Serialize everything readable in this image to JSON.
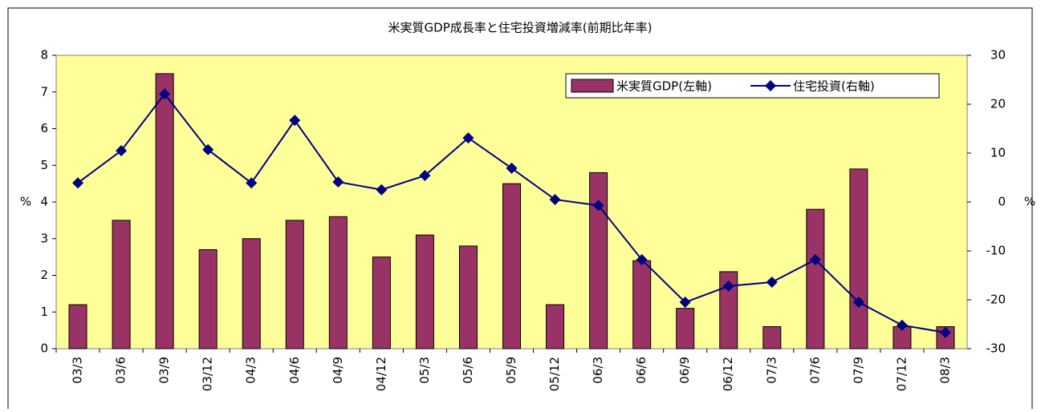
{
  "chart_data": {
    "type": "bar",
    "title": "米実質GDP成長率と住宅投資増減率(前期比年率)",
    "ylabel": "%",
    "y2label": "%",
    "categories": [
      "03/3",
      "03/6",
      "03/9",
      "03/12",
      "04/3",
      "04/6",
      "04/9",
      "04/12",
      "05/3",
      "05/6",
      "05/9",
      "05/12",
      "06/3",
      "06/6",
      "06/9",
      "06/12",
      "07/3",
      "07/6",
      "07/9",
      "07/12",
      "08/3"
    ],
    "series": [
      {
        "name": "米実質GDP(左軸)",
        "type": "bar",
        "color": "#993366",
        "values": [
          1.2,
          3.5,
          7.5,
          2.7,
          3.0,
          3.5,
          3.6,
          2.5,
          3.1,
          2.8,
          4.5,
          1.2,
          4.8,
          2.4,
          1.1,
          2.1,
          0.6,
          3.8,
          4.9,
          0.6,
          0.6
        ]
      },
      {
        "name": "住宅投資(右軸)",
        "type": "line",
        "axis": "y2",
        "color": "#000080",
        "values": [
          3.9,
          10.5,
          22.1,
          10.7,
          3.9,
          16.7,
          4.1,
          2.5,
          5.4,
          13.1,
          6.9,
          0.5,
          -0.7,
          -11.8,
          -20.5,
          -17.2,
          -16.4,
          -11.8,
          -20.5,
          -25.2,
          -26.7
        ]
      }
    ],
    "ylim": [
      0,
      8
    ],
    "yticks": [
      0,
      1,
      2,
      3,
      4,
      5,
      6,
      7,
      8
    ],
    "y2lim": [
      -30,
      30
    ],
    "y2ticks": [
      -30,
      -20,
      -10,
      0,
      10,
      20,
      30
    ],
    "plot_background": "#ffff99"
  }
}
